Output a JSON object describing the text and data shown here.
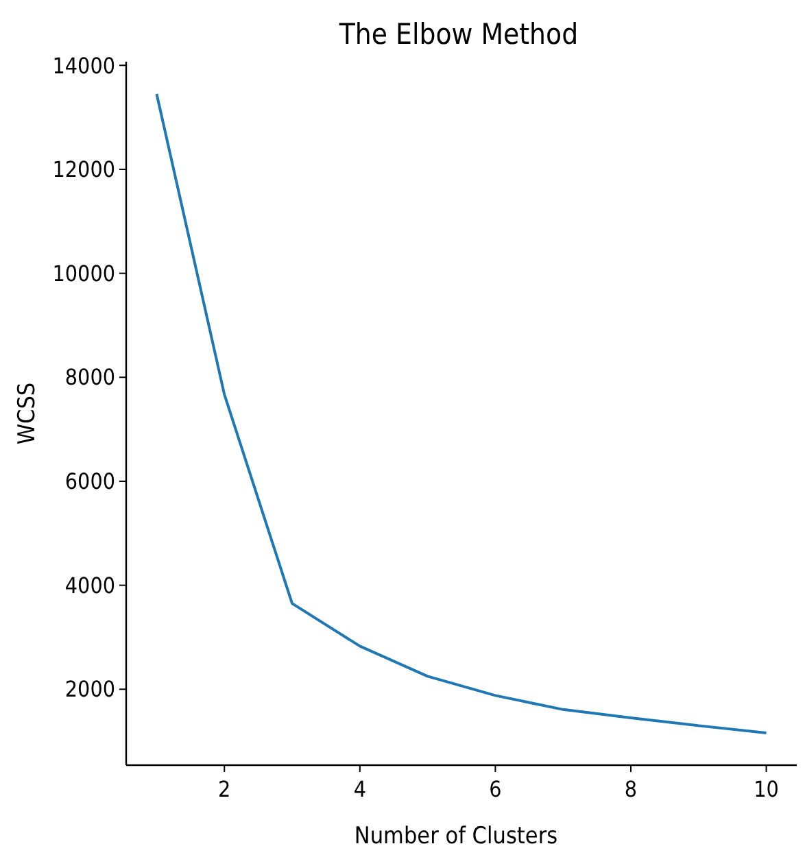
{
  "chart_data": {
    "type": "line",
    "title": "The Elbow Method",
    "xlabel": "Number of Clusters",
    "ylabel": "WCSS",
    "x": [
      1,
      2,
      3,
      4,
      5,
      6,
      7,
      8,
      9,
      10
    ],
    "series": [
      {
        "color": "#1f77b4",
        "values": [
          13450,
          7670,
          3650,
          2830,
          2250,
          1880,
          1610,
          1450,
          1300,
          1160
        ]
      }
    ],
    "xlim": [
      0.55,
      10.45
    ],
    "xticks": [
      2,
      4,
      6,
      8,
      10
    ],
    "ylim": [
      540,
      14070
    ],
    "yticks": [
      2000,
      4000,
      6000,
      8000,
      10000,
      12000,
      14000
    ],
    "grid": false,
    "marker": "none",
    "line_style": "solid"
  }
}
